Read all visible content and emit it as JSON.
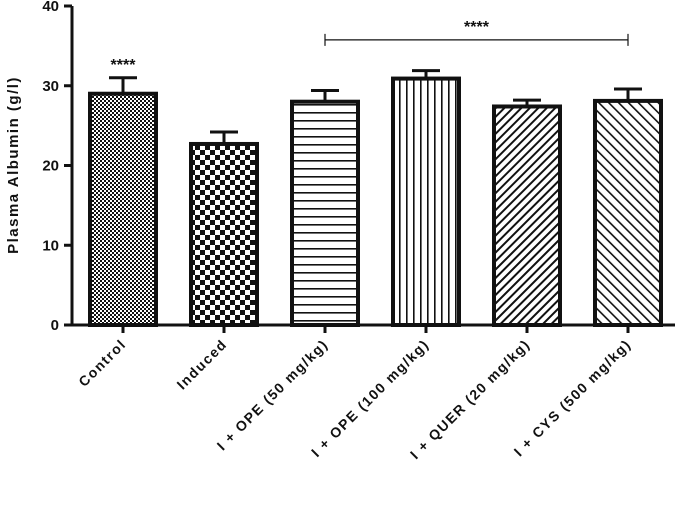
{
  "chart_data": {
    "type": "bar",
    "ylabel": "Plasma Albumin (g/l)",
    "ylim": [
      0,
      40
    ],
    "yticks": [
      0,
      10,
      20,
      30,
      40
    ],
    "categories": [
      "Control",
      "Induced",
      "I + OPE (50 mg/kg)",
      "I + OPE (100 mg/kg)",
      "I + QUER (20 mg/kg)",
      "I + CYS (500 mg/kg)"
    ],
    "values": [
      29,
      22.7,
      28,
      30.9,
      27.4,
      28.1
    ],
    "errors": [
      2.0,
      1.5,
      1.4,
      1.0,
      0.8,
      1.5
    ],
    "patterns": [
      "fine-check",
      "checkerboard",
      "horizontal-lines",
      "vertical-lines",
      "diagonal-lines",
      "diagonal-lines-reverse"
    ],
    "annotations": [
      {
        "text": "****",
        "category": "Control",
        "type": "above-bar"
      },
      {
        "text": "****",
        "from": "I + OPE (50 mg/kg)",
        "to": "I + CYS (500 mg/kg)",
        "type": "bracket",
        "y": 35
      }
    ],
    "grid": false,
    "legend": "none"
  }
}
